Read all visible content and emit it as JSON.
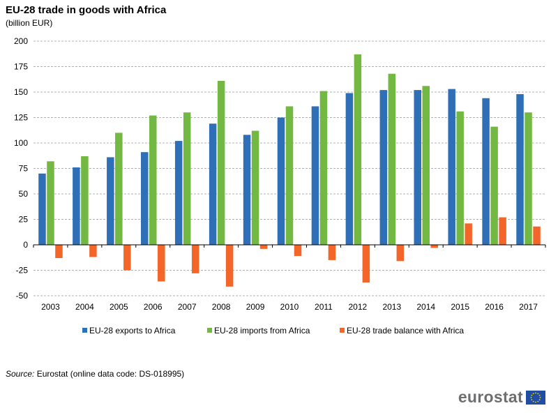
{
  "title": "EU-28 trade in goods with Africa",
  "subtitle": "(billion EUR)",
  "source_label": "Source:",
  "source_text": "Eurostat (online data code: DS-018995)",
  "logo_text": "eurostat",
  "colors": {
    "exports": "#2f6fb8",
    "imports": "#72b843",
    "balance": "#f4652a",
    "grid": "#b0b0b0",
    "flag_blue": "#1f4ea3",
    "flag_star": "#ffd400"
  },
  "chart_data": {
    "type": "bar",
    "title": "EU-28 trade in goods with Africa",
    "ylabel": "(billion EUR)",
    "xlabel": "",
    "ylim": [
      -50,
      200
    ],
    "yticks": [
      -50,
      -25,
      0,
      25,
      50,
      75,
      100,
      125,
      150,
      175,
      200
    ],
    "grid": true,
    "legend_position": "bottom",
    "categories": [
      "2003",
      "2004",
      "2005",
      "2006",
      "2007",
      "2008",
      "2009",
      "2010",
      "2011",
      "2012",
      "2013",
      "2014",
      "2015",
      "2016",
      "2017"
    ],
    "series": [
      {
        "name": "EU-28 exports to Africa",
        "key": "exports",
        "values": [
          70,
          76,
          86,
          91,
          102,
          119,
          108,
          125,
          136,
          149,
          152,
          152,
          153,
          144,
          148
        ]
      },
      {
        "name": "EU-28 imports from Africa",
        "key": "imports",
        "values": [
          82,
          87,
          110,
          127,
          130,
          161,
          112,
          136,
          151,
          187,
          168,
          156,
          131,
          116,
          130
        ]
      },
      {
        "name": "EU-28 trade balance with Africa",
        "key": "balance",
        "values": [
          -13,
          -12,
          -25,
          -36,
          -28,
          -41,
          -4,
          -11,
          -15,
          -37,
          -16,
          -3,
          21,
          27,
          18
        ]
      }
    ]
  }
}
